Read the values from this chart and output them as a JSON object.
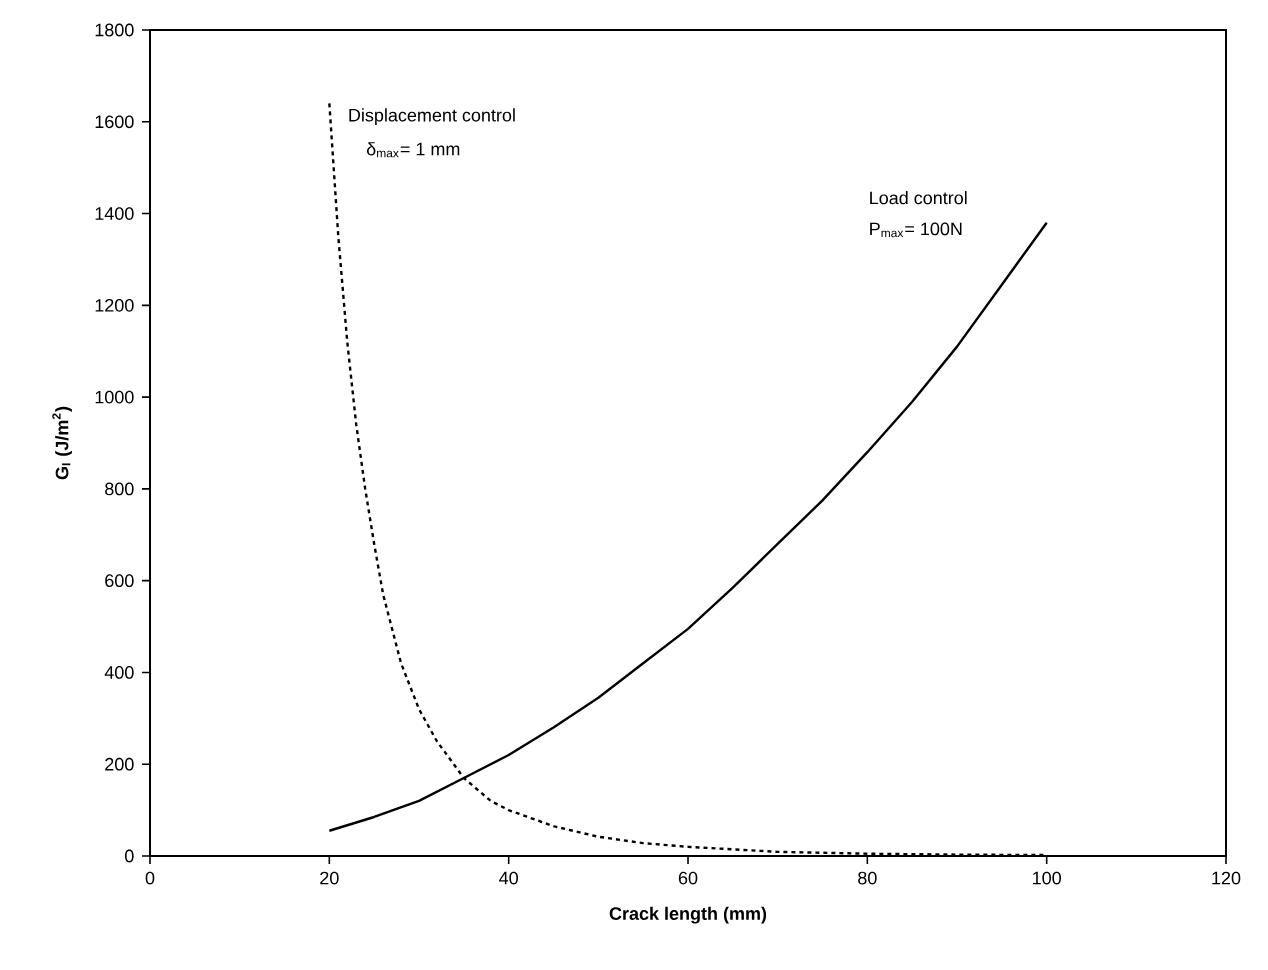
{
  "chart_data": {
    "type": "line",
    "xlabel": "Crack length (mm)",
    "ylabel": "**G$_{I}$ (J/m$^{2}$)**",
    "xlim": [
      0,
      120
    ],
    "xticks": [
      0,
      20,
      40,
      60,
      80,
      100,
      120
    ],
    "ylim": [
      0,
      1800
    ],
    "yticks": [
      0,
      200,
      400,
      600,
      800,
      1000,
      1200,
      1400,
      1600,
      1800
    ],
    "grid": false,
    "marker": "none",
    "series": [
      {
        "color": "#000000",
        "line_style": "dotted",
        "x": [
          20,
          21,
          22,
          23,
          24,
          25,
          26,
          28,
          30,
          32,
          35,
          38,
          40,
          45,
          50,
          55,
          60,
          70,
          80,
          90,
          100
        ],
        "values": [
          1640,
          1350,
          1120,
          940,
          800,
          680,
          570,
          420,
          320,
          250,
          170,
          120,
          100,
          65,
          42,
          28,
          20,
          9,
          5,
          3,
          2
        ]
      },
      {
        "color": "#000000",
        "line_style": "solid",
        "x": [
          20,
          25,
          30,
          35,
          40,
          45,
          50,
          55,
          60,
          65,
          70,
          75,
          80,
          85,
          90,
          95,
          100
        ],
        "values": [
          55,
          85,
          120,
          170,
          220,
          280,
          345,
          420,
          495,
          585,
          680,
          775,
          880,
          990,
          1110,
          1245,
          1380
        ]
      }
    ],
    "annotations": [
      "Displacement control",
      "δ$_{max}$= 1 mm",
      "Load control",
      "P$_{max}$= 100N"
    ]
  }
}
